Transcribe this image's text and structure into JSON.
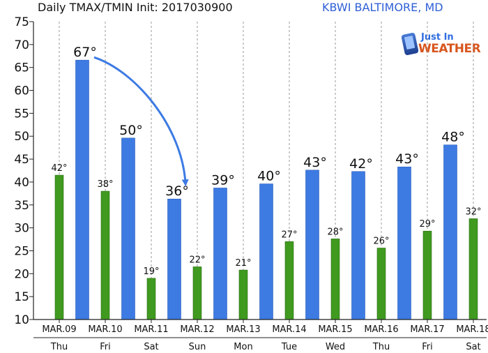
{
  "header": {
    "title": "Daily TMAX/TMIN Init: 2017030900",
    "station": "KBWI BALTIMORE, MD"
  },
  "logo": {
    "line1": "Just In",
    "line2": "WEATHER"
  },
  "colors": {
    "tmax": "#3d7be3",
    "tmin": "#3f9a1f",
    "arrow": "#3d7be3"
  },
  "chart_data": {
    "type": "bar",
    "title": "Daily TMAX/TMIN Init: 2017030900",
    "xlabel": "",
    "ylabel": "",
    "ylim": [
      10,
      75
    ],
    "yticks": [
      10,
      15,
      20,
      25,
      30,
      35,
      40,
      45,
      50,
      55,
      60,
      65,
      70,
      75
    ],
    "grid": "vertical-dashed",
    "days": [
      {
        "date": "MAR.09",
        "dow": "Thu"
      },
      {
        "date": "MAR.10",
        "dow": "Fri"
      },
      {
        "date": "MAR.11",
        "dow": "Sat"
      },
      {
        "date": "MAR.12",
        "dow": "Sun"
      },
      {
        "date": "MAR.13",
        "dow": "Mon"
      },
      {
        "date": "MAR.14",
        "dow": "Tue"
      },
      {
        "date": "MAR.15",
        "dow": "Wed"
      },
      {
        "date": "MAR.16",
        "dow": "Thu"
      },
      {
        "date": "MAR.17",
        "dow": "Fri"
      },
      {
        "date": "MAR.18",
        "dow": "Sat"
      }
    ],
    "tmin": [
      {
        "day": 0,
        "value": 41.5,
        "label": "42°"
      },
      {
        "day": 1,
        "value": 38,
        "label": "38°"
      },
      {
        "day": 2,
        "value": 19,
        "label": "19°"
      },
      {
        "day": 3,
        "value": 21.5,
        "label": "22°"
      },
      {
        "day": 4,
        "value": 20.8,
        "label": "21°"
      },
      {
        "day": 5,
        "value": 27,
        "label": "27°"
      },
      {
        "day": 6,
        "value": 27.6,
        "label": "28°"
      },
      {
        "day": 7,
        "value": 25.6,
        "label": "26°"
      },
      {
        "day": 8,
        "value": 29.3,
        "label": "29°"
      },
      {
        "day": 9,
        "value": 32,
        "label": "32°"
      }
    ],
    "tmax": [
      {
        "day": 0.5,
        "value": 66.6,
        "label": "67°"
      },
      {
        "day": 1.5,
        "value": 49.6,
        "label": "50°"
      },
      {
        "day": 2.5,
        "value": 36.3,
        "label": "36°"
      },
      {
        "day": 3.5,
        "value": 38.7,
        "label": "39°"
      },
      {
        "day": 4.5,
        "value": 39.6,
        "label": "40°"
      },
      {
        "day": 5.5,
        "value": 42.6,
        "label": "43°"
      },
      {
        "day": 6.5,
        "value": 42.3,
        "label": "42°"
      },
      {
        "day": 7.5,
        "value": 43.3,
        "label": "43°"
      },
      {
        "day": 8.5,
        "value": 48.1,
        "label": "48°"
      }
    ],
    "annotation": {
      "type": "arrow",
      "from_bar": 0,
      "to_bar": 2
    }
  }
}
